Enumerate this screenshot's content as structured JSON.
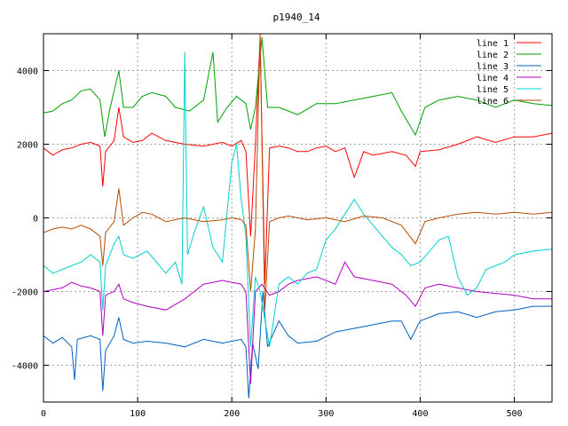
{
  "chart_data": {
    "type": "line",
    "title": "p1940_14",
    "xlabel": "",
    "ylabel": "",
    "xlim": [
      0,
      540
    ],
    "ylim": [
      -5000,
      5000
    ],
    "x_ticks": [
      0,
      100,
      200,
      300,
      400,
      500
    ],
    "y_ticks": [
      -4000,
      -2000,
      0,
      2000,
      4000
    ],
    "grid": true,
    "legend_position": "top-right",
    "series": [
      {
        "name": "line 1",
        "color": "#ff0000",
        "values": [
          [
            0,
            1900
          ],
          [
            10,
            1700
          ],
          [
            20,
            1850
          ],
          [
            30,
            1900
          ],
          [
            40,
            2000
          ],
          [
            50,
            2050
          ],
          [
            60,
            1950
          ],
          [
            63,
            850
          ],
          [
            66,
            1800
          ],
          [
            75,
            2100
          ],
          [
            80,
            3000
          ],
          [
            85,
            2200
          ],
          [
            95,
            2050
          ],
          [
            105,
            2100
          ],
          [
            115,
            2300
          ],
          [
            130,
            2100
          ],
          [
            150,
            2000
          ],
          [
            170,
            1950
          ],
          [
            190,
            2050
          ],
          [
            200,
            1950
          ],
          [
            210,
            2100
          ],
          [
            215,
            1800
          ],
          [
            220,
            -500
          ],
          [
            225,
            2000
          ],
          [
            230,
            4900
          ],
          [
            235,
            -1800
          ],
          [
            240,
            1900
          ],
          [
            250,
            1950
          ],
          [
            260,
            1900
          ],
          [
            270,
            1800
          ],
          [
            280,
            1800
          ],
          [
            290,
            1900
          ],
          [
            300,
            1950
          ],
          [
            310,
            1800
          ],
          [
            320,
            1900
          ],
          [
            330,
            1100
          ],
          [
            340,
            1800
          ],
          [
            350,
            1700
          ],
          [
            370,
            1800
          ],
          [
            385,
            1700
          ],
          [
            395,
            1400
          ],
          [
            400,
            1800
          ],
          [
            420,
            1850
          ],
          [
            440,
            2000
          ],
          [
            460,
            2200
          ],
          [
            480,
            2050
          ],
          [
            500,
            2200
          ],
          [
            520,
            2200
          ],
          [
            540,
            2300
          ]
        ]
      },
      {
        "name": "line 2",
        "color": "#00a000",
        "values": [
          [
            0,
            2850
          ],
          [
            10,
            2900
          ],
          [
            20,
            3100
          ],
          [
            30,
            3200
          ],
          [
            40,
            3450
          ],
          [
            50,
            3500
          ],
          [
            60,
            3200
          ],
          [
            65,
            2200
          ],
          [
            70,
            2900
          ],
          [
            80,
            4000
          ],
          [
            85,
            3000
          ],
          [
            95,
            3000
          ],
          [
            105,
            3300
          ],
          [
            115,
            3400
          ],
          [
            130,
            3300
          ],
          [
            140,
            3000
          ],
          [
            155,
            2900
          ],
          [
            170,
            3200
          ],
          [
            180,
            4500
          ],
          [
            185,
            2600
          ],
          [
            195,
            3000
          ],
          [
            205,
            3300
          ],
          [
            215,
            3100
          ],
          [
            220,
            2400
          ],
          [
            225,
            3000
          ],
          [
            232,
            4900
          ],
          [
            238,
            3000
          ],
          [
            250,
            3000
          ],
          [
            260,
            2900
          ],
          [
            270,
            2800
          ],
          [
            290,
            3100
          ],
          [
            310,
            3100
          ],
          [
            330,
            3200
          ],
          [
            350,
            3300
          ],
          [
            370,
            3400
          ],
          [
            380,
            2900
          ],
          [
            395,
            2250
          ],
          [
            405,
            3000
          ],
          [
            420,
            3200
          ],
          [
            440,
            3300
          ],
          [
            460,
            3200
          ],
          [
            480,
            3000
          ],
          [
            500,
            3200
          ],
          [
            520,
            3100
          ],
          [
            540,
            3050
          ]
        ]
      },
      {
        "name": "line 3",
        "color": "#0060c0",
        "values": [
          [
            0,
            -3200
          ],
          [
            10,
            -3400
          ],
          [
            20,
            -3250
          ],
          [
            30,
            -3500
          ],
          [
            33,
            -4400
          ],
          [
            36,
            -3300
          ],
          [
            50,
            -3200
          ],
          [
            60,
            -3300
          ],
          [
            63,
            -4700
          ],
          [
            66,
            -3600
          ],
          [
            75,
            -3200
          ],
          [
            80,
            -2700
          ],
          [
            85,
            -3300
          ],
          [
            95,
            -3400
          ],
          [
            110,
            -3350
          ],
          [
            130,
            -3400
          ],
          [
            150,
            -3500
          ],
          [
            170,
            -3300
          ],
          [
            190,
            -3400
          ],
          [
            200,
            -3350
          ],
          [
            210,
            -3300
          ],
          [
            215,
            -3500
          ],
          [
            218,
            -4900
          ],
          [
            222,
            -3400
          ],
          [
            228,
            -4100
          ],
          [
            233,
            -2000
          ],
          [
            238,
            -3500
          ],
          [
            250,
            -2800
          ],
          [
            260,
            -3200
          ],
          [
            270,
            -3400
          ],
          [
            290,
            -3350
          ],
          [
            310,
            -3100
          ],
          [
            330,
            -3000
          ],
          [
            350,
            -2900
          ],
          [
            370,
            -2800
          ],
          [
            380,
            -2800
          ],
          [
            390,
            -3300
          ],
          [
            400,
            -2800
          ],
          [
            420,
            -2600
          ],
          [
            440,
            -2550
          ],
          [
            460,
            -2700
          ],
          [
            480,
            -2550
          ],
          [
            500,
            -2500
          ],
          [
            520,
            -2400
          ],
          [
            540,
            -2400
          ]
        ]
      },
      {
        "name": "line 4",
        "color": "#b000c0",
        "values": [
          [
            0,
            -2000
          ],
          [
            10,
            -1950
          ],
          [
            20,
            -1900
          ],
          [
            30,
            -1750
          ],
          [
            40,
            -1850
          ],
          [
            50,
            -1900
          ],
          [
            60,
            -2000
          ],
          [
            63,
            -3200
          ],
          [
            66,
            -2100
          ],
          [
            75,
            -2000
          ],
          [
            80,
            -1800
          ],
          [
            85,
            -2200
          ],
          [
            95,
            -2300
          ],
          [
            110,
            -2400
          ],
          [
            130,
            -2500
          ],
          [
            150,
            -2200
          ],
          [
            170,
            -1800
          ],
          [
            190,
            -1700
          ],
          [
            200,
            -1750
          ],
          [
            210,
            -1800
          ],
          [
            215,
            -2000
          ],
          [
            220,
            -4500
          ],
          [
            225,
            -2000
          ],
          [
            232,
            -1800
          ],
          [
            240,
            -2100
          ],
          [
            250,
            -2000
          ],
          [
            260,
            -1800
          ],
          [
            270,
            -1700
          ],
          [
            290,
            -1600
          ],
          [
            310,
            -1800
          ],
          [
            320,
            -1200
          ],
          [
            330,
            -1600
          ],
          [
            350,
            -1700
          ],
          [
            370,
            -1800
          ],
          [
            385,
            -2100
          ],
          [
            395,
            -2400
          ],
          [
            405,
            -1900
          ],
          [
            420,
            -1800
          ],
          [
            440,
            -1900
          ],
          [
            460,
            -2000
          ],
          [
            480,
            -2050
          ],
          [
            500,
            -2100
          ],
          [
            520,
            -2200
          ],
          [
            540,
            -2200
          ]
        ]
      },
      {
        "name": "line 5",
        "color": "#00d0d0",
        "values": [
          [
            0,
            -1300
          ],
          [
            10,
            -1500
          ],
          [
            20,
            -1400
          ],
          [
            30,
            -1300
          ],
          [
            40,
            -1200
          ],
          [
            50,
            -1000
          ],
          [
            60,
            -1200
          ],
          [
            63,
            -2500
          ],
          [
            66,
            -1300
          ],
          [
            75,
            -700
          ],
          [
            80,
            -500
          ],
          [
            85,
            -1000
          ],
          [
            95,
            -1100
          ],
          [
            110,
            -900
          ],
          [
            130,
            -1500
          ],
          [
            140,
            -1200
          ],
          [
            147,
            -1800
          ],
          [
            150,
            4500
          ],
          [
            153,
            -1000
          ],
          [
            160,
            -400
          ],
          [
            170,
            300
          ],
          [
            180,
            -800
          ],
          [
            190,
            -1200
          ],
          [
            200,
            1500
          ],
          [
            205,
            2000
          ],
          [
            210,
            500
          ],
          [
            215,
            -500
          ],
          [
            220,
            -3500
          ],
          [
            225,
            -1600
          ],
          [
            230,
            -2000
          ],
          [
            240,
            -3500
          ],
          [
            250,
            -1800
          ],
          [
            260,
            -1600
          ],
          [
            270,
            -1800
          ],
          [
            280,
            -1500
          ],
          [
            290,
            -1400
          ],
          [
            300,
            -600
          ],
          [
            310,
            -300
          ],
          [
            320,
            100
          ],
          [
            330,
            500
          ],
          [
            340,
            100
          ],
          [
            350,
            -200
          ],
          [
            360,
            -500
          ],
          [
            370,
            -800
          ],
          [
            380,
            -1000
          ],
          [
            390,
            -1300
          ],
          [
            400,
            -1200
          ],
          [
            410,
            -900
          ],
          [
            420,
            -600
          ],
          [
            430,
            -500
          ],
          [
            440,
            -1600
          ],
          [
            450,
            -2100
          ],
          [
            460,
            -1900
          ],
          [
            470,
            -1400
          ],
          [
            480,
            -1300
          ],
          [
            490,
            -1200
          ],
          [
            500,
            -1000
          ],
          [
            520,
            -900
          ],
          [
            540,
            -850
          ]
        ]
      },
      {
        "name": "line 6",
        "color": "#b84a00",
        "values": [
          [
            0,
            -400
          ],
          [
            10,
            -300
          ],
          [
            20,
            -250
          ],
          [
            30,
            -300
          ],
          [
            40,
            -200
          ],
          [
            50,
            -300
          ],
          [
            60,
            -500
          ],
          [
            63,
            -1300
          ],
          [
            66,
            -400
          ],
          [
            75,
            -100
          ],
          [
            80,
            800
          ],
          [
            85,
            -200
          ],
          [
            95,
            0
          ],
          [
            105,
            150
          ],
          [
            115,
            100
          ],
          [
            130,
            -100
          ],
          [
            150,
            0
          ],
          [
            170,
            -100
          ],
          [
            190,
            -50
          ],
          [
            200,
            0
          ],
          [
            210,
            -50
          ],
          [
            215,
            -200
          ],
          [
            220,
            -2000
          ],
          [
            225,
            -300
          ],
          [
            230,
            5000
          ],
          [
            235,
            -2500
          ],
          [
            240,
            -100
          ],
          [
            250,
            0
          ],
          [
            260,
            50
          ],
          [
            280,
            -50
          ],
          [
            300,
            0
          ],
          [
            320,
            -100
          ],
          [
            340,
            50
          ],
          [
            360,
            0
          ],
          [
            380,
            -200
          ],
          [
            395,
            -700
          ],
          [
            405,
            -100
          ],
          [
            420,
            0
          ],
          [
            440,
            100
          ],
          [
            460,
            150
          ],
          [
            480,
            100
          ],
          [
            500,
            150
          ],
          [
            520,
            100
          ],
          [
            540,
            150
          ]
        ]
      }
    ]
  }
}
